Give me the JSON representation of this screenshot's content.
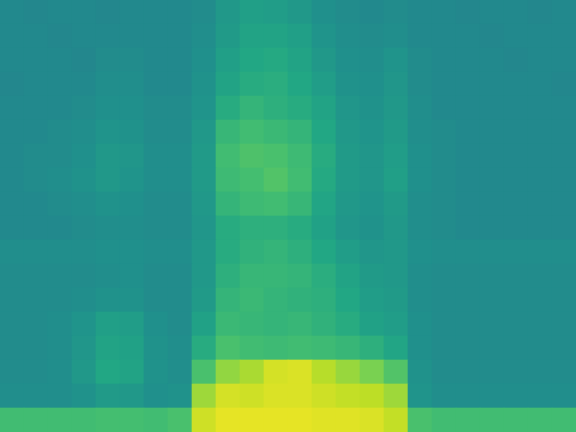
{
  "chart_data": {
    "type": "heatmap",
    "tick_labels": false,
    "grid": false,
    "zlim": [
      -1,
      10
    ],
    "cells": [
      [
        4.2,
        4.1,
        4.2,
        4.2,
        4.1,
        4.2,
        4.2,
        4.2,
        4.3,
        4.9,
        5.2,
        5.1,
        4.9,
        4.5,
        4.3,
        4.2,
        4.3,
        4.2,
        4.2,
        4.1,
        4.2,
        4.2,
        4.1,
        4.2
      ],
      [
        4.2,
        4.2,
        4.1,
        4.2,
        4.2,
        4.2,
        4.2,
        4.2,
        4.4,
        5.0,
        5.4,
        5.4,
        5.2,
        4.7,
        4.4,
        4.3,
        4.4,
        4.2,
        4.2,
        4.2,
        4.1,
        4.2,
        4.2,
        4.2
      ],
      [
        4.2,
        4.2,
        4.2,
        4.1,
        4.3,
        4.3,
        4.2,
        4.2,
        4.5,
        5.2,
        5.6,
        5.7,
        5.4,
        4.9,
        4.5,
        4.4,
        4.7,
        4.3,
        4.2,
        4.2,
        4.2,
        4.1,
        4.2,
        4.2
      ],
      [
        4.1,
        4.2,
        4.2,
        4.2,
        4.4,
        4.4,
        4.2,
        4.2,
        4.6,
        5.4,
        5.8,
        5.9,
        5.6,
        5.1,
        4.6,
        4.5,
        4.8,
        4.3,
        4.2,
        4.2,
        4.2,
        4.2,
        4.2,
        4.1
      ],
      [
        4.2,
        4.2,
        4.2,
        4.3,
        4.5,
        4.5,
        4.3,
        4.3,
        4.7,
        5.8,
        6.2,
        6.0,
        5.8,
        5.4,
        4.8,
        4.6,
        4.9,
        4.4,
        4.2,
        4.2,
        4.2,
        4.2,
        4.2,
        4.2
      ],
      [
        4.2,
        4.2,
        4.3,
        4.4,
        4.7,
        4.6,
        4.3,
        4.3,
        4.9,
        6.3,
        6.6,
        6.4,
        6.2,
        5.6,
        4.9,
        4.7,
        5.0,
        4.4,
        4.3,
        4.2,
        4.2,
        4.2,
        4.2,
        4.2
      ],
      [
        4.2,
        4.3,
        4.3,
        4.5,
        4.9,
        4.8,
        4.4,
        4.4,
        5.0,
        6.6,
        6.9,
        6.8,
        6.5,
        5.8,
        5.0,
        4.8,
        5.1,
        4.5,
        4.3,
        4.2,
        4.2,
        4.2,
        4.2,
        4.2
      ],
      [
        4.2,
        4.3,
        4.4,
        4.6,
        4.9,
        4.7,
        4.4,
        4.4,
        5.0,
        6.5,
        6.7,
        7.0,
        6.6,
        5.7,
        5.0,
        4.8,
        5.2,
        4.5,
        4.3,
        4.2,
        4.2,
        4.2,
        4.2,
        4.2
      ],
      [
        4.2,
        4.2,
        4.3,
        4.4,
        4.6,
        4.5,
        4.3,
        4.3,
        4.9,
        6.2,
        6.5,
        6.6,
        6.3,
        5.5,
        4.9,
        4.7,
        5.0,
        4.4,
        4.3,
        4.2,
        4.2,
        4.2,
        4.2,
        4.2
      ],
      [
        4.2,
        4.2,
        4.2,
        4.3,
        4.4,
        4.4,
        4.3,
        4.3,
        4.8,
        5.8,
        6.0,
        6.0,
        5.8,
        5.3,
        4.8,
        4.6,
        4.9,
        4.4,
        4.3,
        4.2,
        4.2,
        4.2,
        4.2,
        4.2
      ],
      [
        4.4,
        4.4,
        4.4,
        4.4,
        4.5,
        4.5,
        4.4,
        4.4,
        4.9,
        5.8,
        6.1,
        6.2,
        6.0,
        5.6,
        5.1,
        4.8,
        4.9,
        4.5,
        4.4,
        4.4,
        4.4,
        4.4,
        4.4,
        4.4
      ],
      [
        4.3,
        4.3,
        4.3,
        4.3,
        4.4,
        4.5,
        4.3,
        4.3,
        4.9,
        6.0,
        6.3,
        6.3,
        6.2,
        5.9,
        5.4,
        5.0,
        4.9,
        4.4,
        4.3,
        4.3,
        4.3,
        4.3,
        4.3,
        4.3
      ],
      [
        4.3,
        4.3,
        4.3,
        4.4,
        4.6,
        4.6,
        4.3,
        4.3,
        5.0,
        6.2,
        6.4,
        6.2,
        6.1,
        6.0,
        5.6,
        5.1,
        5.0,
        4.4,
        4.3,
        4.3,
        4.3,
        4.3,
        4.3,
        4.3
      ],
      [
        4.3,
        4.3,
        4.4,
        4.7,
        5.2,
        5.1,
        4.5,
        4.3,
        5.3,
        6.4,
        6.3,
        6.2,
        6.3,
        6.1,
        5.8,
        5.3,
        5.1,
        4.5,
        4.3,
        4.3,
        4.3,
        4.3,
        4.3,
        4.3
      ],
      [
        4.3,
        4.3,
        4.4,
        4.8,
        5.4,
        5.3,
        4.6,
        4.4,
        5.8,
        6.8,
        6.6,
        6.5,
        6.6,
        6.5,
        6.3,
        6.0,
        5.5,
        4.5,
        4.3,
        4.3,
        4.3,
        4.3,
        4.3,
        4.3
      ],
      [
        4.3,
        4.3,
        4.4,
        4.9,
        5.6,
        5.4,
        4.6,
        4.4,
        6.8,
        8.2,
        8.6,
        9.3,
        9.4,
        8.8,
        8.3,
        7.8,
        7.0,
        4.6,
        4.3,
        4.3,
        4.3,
        4.3,
        4.3,
        4.3
      ],
      [
        4.4,
        4.4,
        4.4,
        4.6,
        5.0,
        4.9,
        4.5,
        4.6,
        8.4,
        9.3,
        9.2,
        9.4,
        9.4,
        9.2,
        9.0,
        8.9,
        8.4,
        4.7,
        4.4,
        4.4,
        4.4,
        4.4,
        4.4,
        4.4
      ],
      [
        6.6,
        6.6,
        6.6,
        6.6,
        6.7,
        6.7,
        6.6,
        6.8,
        9.2,
        9.6,
        9.6,
        9.6,
        9.6,
        9.5,
        9.5,
        9.4,
        9.0,
        6.8,
        6.6,
        6.6,
        6.6,
        6.6,
        6.6,
        6.6
      ]
    ]
  }
}
